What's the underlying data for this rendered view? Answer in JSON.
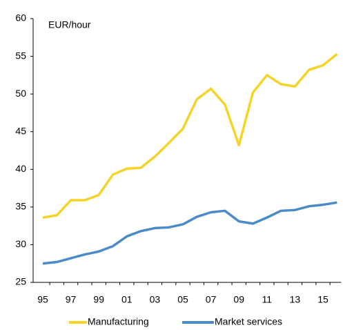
{
  "chart_data": {
    "type": "line",
    "ylabel": "EUR/hour",
    "categories": [
      "95",
      null,
      "97",
      null,
      "99",
      null,
      "01",
      null,
      "03",
      null,
      "05",
      null,
      "07",
      null,
      "09",
      null,
      "11",
      null,
      "13",
      null,
      "15",
      null
    ],
    "series": [
      {
        "name": "Manufacturing",
        "color": "#f5d327",
        "values": [
          33.6,
          33.9,
          35.9,
          35.9,
          36.6,
          39.3,
          40.1,
          40.2,
          41.7,
          43.5,
          45.4,
          49.3,
          50.7,
          48.6,
          43.2,
          50.2,
          52.5,
          51.3,
          51.0,
          53.2,
          53.8,
          55.3
        ]
      },
      {
        "name": "Market services",
        "color": "#4a8ac6",
        "values": [
          27.5,
          27.7,
          28.2,
          28.7,
          29.1,
          29.8,
          31.1,
          31.8,
          32.2,
          32.3,
          32.7,
          33.7,
          34.3,
          34.5,
          33.1,
          32.8,
          33.6,
          34.5,
          34.6,
          35.1,
          35.3,
          35.6
        ]
      }
    ],
    "ylim": [
      25,
      60
    ],
    "yticks": [
      25,
      30,
      35,
      40,
      45,
      50,
      55,
      60
    ],
    "grid": false,
    "legend": "bottom"
  }
}
